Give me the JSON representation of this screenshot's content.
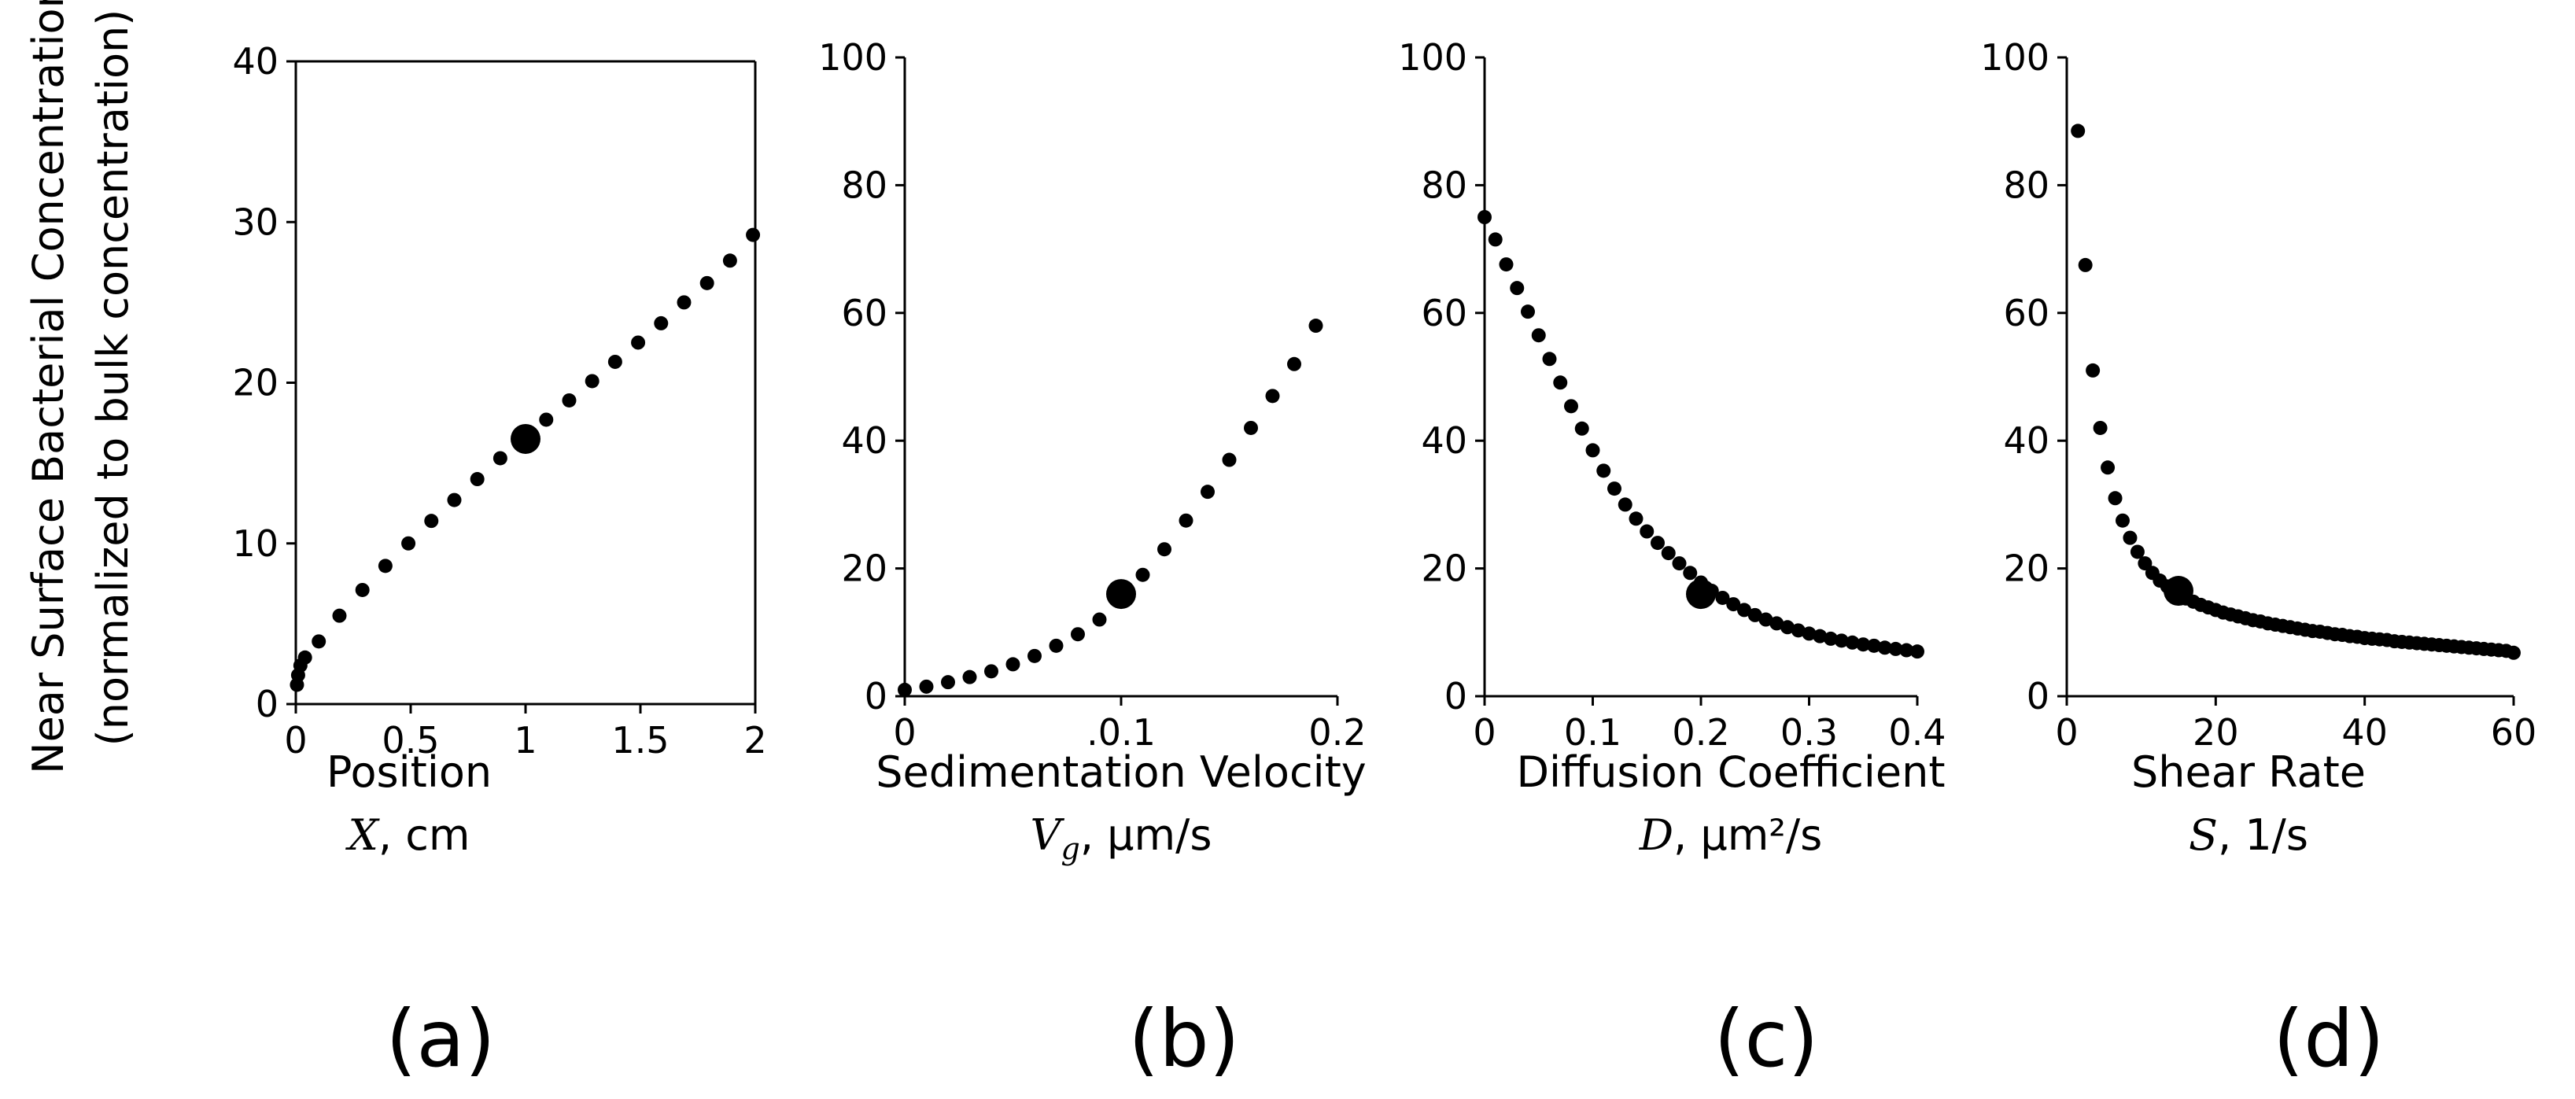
{
  "ylabel": {
    "line1": "Near Surface Bacterial Concentration",
    "line2": "(normalized to bulk concentration)"
  },
  "chart_data": [
    {
      "type": "scatter",
      "panel": "(a)",
      "xlabel_line1": "Position",
      "xlabel_symbol": "X",
      "xlabel_unit": ", cm",
      "xlim": [
        0,
        2
      ],
      "ylim": [
        0,
        40
      ],
      "x_ticks": [
        "0",
        "0.5",
        "1",
        "1.5",
        "2"
      ],
      "y_ticks": [
        "0",
        "10",
        "20",
        "30",
        "40"
      ],
      "highlight": {
        "x": 1,
        "y": 16.5
      },
      "points": {
        "x": [
          0.005,
          0.01,
          0.02,
          0.04,
          0.1,
          0.19,
          0.29,
          0.39,
          0.49,
          0.59,
          0.69,
          0.79,
          0.89,
          0.99,
          1.09,
          1.19,
          1.29,
          1.39,
          1.49,
          1.59,
          1.69,
          1.79,
          1.89,
          1.99
        ],
        "y": [
          1.2,
          1.8,
          2.4,
          2.9,
          3.9,
          5.5,
          7.1,
          8.6,
          10.0,
          11.4,
          12.7,
          14.0,
          15.3,
          16.5,
          17.7,
          18.9,
          20.1,
          21.3,
          22.5,
          23.7,
          25.0,
          26.2,
          27.6,
          29.2
        ]
      }
    },
    {
      "type": "scatter",
      "panel": "(b)",
      "xlabel_line1": "Sedimentation Velocity",
      "xlabel_symbol": "V",
      "xlabel_sub": "g",
      "xlabel_unit": ", µm/s",
      "xlim": [
        0,
        0.2
      ],
      "ylim": [
        0,
        100
      ],
      "x_ticks": [
        "0",
        ".0.1",
        "0.2"
      ],
      "y_ticks": [
        "0",
        "20",
        "40",
        "60",
        "80",
        "100"
      ],
      "highlight": {
        "x": 0.1,
        "y": 16
      },
      "points": {
        "x": [
          0.0,
          0.01,
          0.02,
          0.03,
          0.04,
          0.05,
          0.06,
          0.07,
          0.08,
          0.09,
          0.1,
          0.11,
          0.12,
          0.13,
          0.14,
          0.15,
          0.16,
          0.17,
          0.18,
          0.19
        ],
        "y": [
          1.0,
          1.5,
          2.2,
          3.0,
          3.9,
          5.0,
          6.3,
          7.9,
          9.7,
          12.0,
          15.0,
          19.0,
          23.0,
          27.5,
          32.0,
          37.0,
          42.0,
          47.0,
          52.0,
          58.0
        ]
      }
    },
    {
      "type": "scatter",
      "panel": "(c)",
      "xlabel_line1": "Diffusion Coefficient",
      "xlabel_symbol": "D",
      "xlabel_unit": ", µm²/s",
      "xlim": [
        0,
        0.4
      ],
      "ylim": [
        0,
        100
      ],
      "x_ticks": [
        "0",
        "0.1",
        "0.2",
        "0.3",
        "0.4"
      ],
      "y_ticks": [
        "0",
        "20",
        "40",
        "60",
        "80",
        "100"
      ],
      "highlight": {
        "x": 0.2,
        "y": 16
      },
      "points": {
        "x": [
          0.0,
          0.01,
          0.02,
          0.03,
          0.04,
          0.05,
          0.06,
          0.07,
          0.08,
          0.09,
          0.1,
          0.11,
          0.12,
          0.13,
          0.14,
          0.15,
          0.16,
          0.17,
          0.18,
          0.19,
          0.2,
          0.21,
          0.22,
          0.23,
          0.24,
          0.25,
          0.26,
          0.27,
          0.28,
          0.29,
          0.3,
          0.31,
          0.32,
          0.33,
          0.34,
          0.35,
          0.36,
          0.37,
          0.38,
          0.39,
          0.4
        ],
        "y": [
          75.0,
          71.5,
          67.6,
          63.9,
          60.2,
          56.5,
          52.8,
          49.1,
          45.4,
          41.9,
          38.5,
          35.3,
          32.5,
          30.0,
          27.8,
          25.8,
          24.0,
          22.4,
          20.8,
          19.3,
          17.8,
          16.5,
          15.4,
          14.4,
          13.5,
          12.7,
          12.0,
          11.4,
          10.8,
          10.3,
          9.8,
          9.4,
          9.0,
          8.7,
          8.4,
          8.1,
          7.9,
          7.6,
          7.4,
          7.2,
          7.0
        ]
      }
    },
    {
      "type": "scatter",
      "panel": "(d)",
      "xlabel_line1": "Shear Rate",
      "xlabel_symbol": "S",
      "xlabel_unit": ", 1/s",
      "xlim": [
        0,
        60
      ],
      "ylim": [
        0,
        100
      ],
      "x_ticks": [
        "0",
        "20",
        "40",
        "60"
      ],
      "y_ticks": [
        "0",
        "20",
        "40",
        "60",
        "80",
        "100"
      ],
      "highlight": {
        "x": 15,
        "y": 16.5
      },
      "points": {
        "x": [
          1.5,
          2.5,
          3.5,
          4.5,
          5.5,
          6.5,
          7.5,
          8.5,
          9.5,
          10.5,
          11.5,
          12.5,
          13.5,
          14.5,
          16,
          17,
          18,
          19,
          20,
          21,
          22,
          23,
          24,
          25,
          26,
          27,
          28,
          29,
          30,
          31,
          32,
          33,
          34,
          35,
          36,
          37,
          38,
          39,
          40,
          41,
          42,
          43,
          44,
          45,
          46,
          47,
          48,
          49,
          50,
          51,
          52,
          53,
          54,
          55,
          56,
          57,
          58,
          59,
          60
        ],
        "y": [
          88.5,
          67.5,
          51.0,
          42.0,
          35.8,
          31.0,
          27.5,
          24.8,
          22.6,
          20.8,
          19.3,
          18.1,
          17.2,
          16.4,
          15.3,
          14.8,
          14.3,
          13.9,
          13.5,
          13.1,
          12.8,
          12.5,
          12.2,
          11.9,
          11.7,
          11.4,
          11.2,
          11.0,
          10.8,
          10.6,
          10.4,
          10.2,
          10.1,
          9.9,
          9.7,
          9.6,
          9.4,
          9.3,
          9.1,
          9.0,
          8.9,
          8.8,
          8.6,
          8.5,
          8.4,
          8.3,
          8.2,
          8.1,
          8.0,
          7.9,
          7.8,
          7.7,
          7.6,
          7.5,
          7.4,
          7.3,
          7.2,
          7.1,
          6.8
        ]
      }
    }
  ]
}
